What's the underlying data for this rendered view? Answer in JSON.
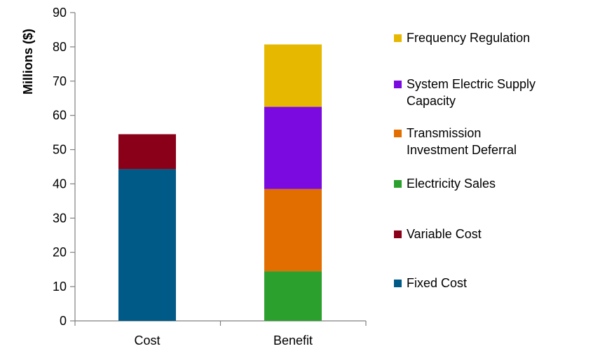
{
  "chart_data": {
    "type": "bar",
    "stacked": true,
    "categories": [
      "Cost",
      "Benefit"
    ],
    "ylabel": "Millions ($)",
    "ylim": [
      0,
      90
    ],
    "yticks": [
      0,
      10,
      20,
      30,
      40,
      50,
      60,
      70,
      80,
      90
    ],
    "grid": false,
    "legend_position": "right",
    "series": [
      {
        "name": "Fixed Cost",
        "color": "#005A87",
        "values": [
          44.3,
          0
        ]
      },
      {
        "name": "Variable Cost",
        "color": "#8B0019",
        "values": [
          10.2,
          0
        ]
      },
      {
        "name": "Electricity Sales",
        "color": "#2CA02C",
        "values": [
          0,
          14.5
        ]
      },
      {
        "name": "Transmission Investment Deferral",
        "color": "#E36E00",
        "values": [
          0,
          24.0
        ]
      },
      {
        "name": "System Electric Supply Capacity",
        "color": "#7A0AE0",
        "values": [
          0,
          24.0
        ]
      },
      {
        "name": "Frequency Regulation",
        "color": "#E6B800",
        "values": [
          0,
          18.2
        ]
      }
    ],
    "legend_order": [
      "Frequency Regulation",
      "System Electric Supply Capacity",
      "Transmission Investment Deferral",
      "Electricity Sales",
      "Variable Cost",
      "Fixed Cost"
    ],
    "legend_lines": {
      "Frequency Regulation": [
        "Frequency Regulation"
      ],
      "System Electric Supply Capacity": [
        "System Electric Supply",
        "Capacity"
      ],
      "Transmission Investment Deferral": [
        "Transmission",
        "Investment Deferral"
      ],
      "Electricity Sales": [
        "Electricity Sales"
      ],
      "Variable Cost": [
        "Variable Cost"
      ],
      "Fixed Cost": [
        "Fixed Cost"
      ]
    }
  }
}
